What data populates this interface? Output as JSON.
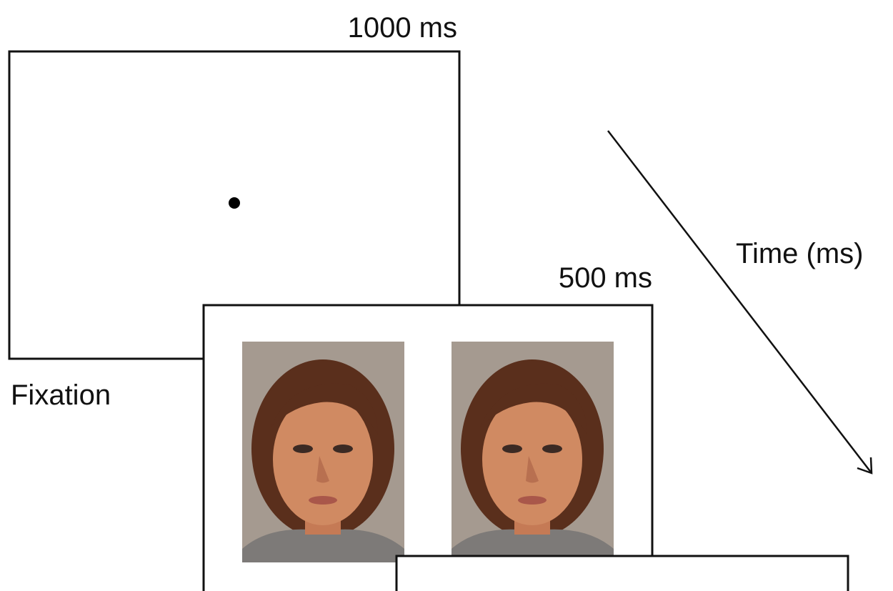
{
  "frames": [
    {
      "duration": "1000 ms",
      "label": "Fixation"
    },
    {
      "duration": "500 ms"
    }
  ],
  "time_axis": {
    "label": "Time (ms)"
  }
}
